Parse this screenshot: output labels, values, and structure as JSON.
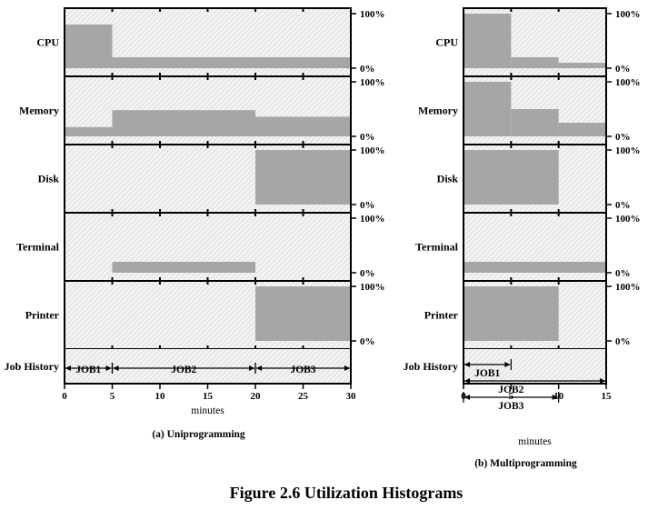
{
  "figure_title": "Figure 2.6  Utilization Histograms",
  "chart_data": [
    {
      "type": "bar",
      "title": "(a) Uniprogramming",
      "xlabel": "minutes",
      "xlim": [
        0,
        30
      ],
      "ticks": [
        0,
        5,
        10,
        15,
        20,
        25,
        30
      ],
      "ylim": [
        0,
        100
      ],
      "y_tick_labels": [
        "100%",
        "0%"
      ],
      "resources": [
        {
          "name": "CPU",
          "segments": [
            {
              "start": 0,
              "end": 5,
              "value": 80
            },
            {
              "start": 5,
              "end": 30,
              "value": 20
            }
          ]
        },
        {
          "name": "Memory",
          "segments": [
            {
              "start": 0,
              "end": 5,
              "value": 17
            },
            {
              "start": 5,
              "end": 20,
              "value": 48
            },
            {
              "start": 20,
              "end": 30,
              "value": 36
            }
          ]
        },
        {
          "name": "Disk",
          "segments": [
            {
              "start": 0,
              "end": 20,
              "value": 0
            },
            {
              "start": 20,
              "end": 30,
              "value": 100
            }
          ]
        },
        {
          "name": "Terminal",
          "segments": [
            {
              "start": 0,
              "end": 5,
              "value": 0
            },
            {
              "start": 5,
              "end": 20,
              "value": 20
            },
            {
              "start": 20,
              "end": 30,
              "value": 0
            }
          ]
        },
        {
          "name": "Printer",
          "segments": [
            {
              "start": 0,
              "end": 20,
              "value": 0
            },
            {
              "start": 20,
              "end": 30,
              "value": 100
            }
          ]
        }
      ],
      "job_history_label": "Job History",
      "jobs": [
        {
          "name": "JOB1",
          "start": 0,
          "end": 5
        },
        {
          "name": "JOB2",
          "start": 5,
          "end": 20
        },
        {
          "name": "JOB3",
          "start": 20,
          "end": 30
        }
      ]
    },
    {
      "type": "bar",
      "title": "(b) Multiprogramming",
      "xlabel": "minutes",
      "xlim": [
        0,
        15
      ],
      "ticks": [
        0,
        5,
        10,
        15
      ],
      "ylim": [
        0,
        100
      ],
      "y_tick_labels": [
        "100%",
        "0%"
      ],
      "resources": [
        {
          "name": "CPU",
          "segments": [
            {
              "start": 0,
              "end": 5,
              "value": 100
            },
            {
              "start": 5,
              "end": 10,
              "value": 20
            },
            {
              "start": 10,
              "end": 15,
              "value": 10
            }
          ]
        },
        {
          "name": "Memory",
          "segments": [
            {
              "start": 0,
              "end": 5,
              "value": 100
            },
            {
              "start": 5,
              "end": 10,
              "value": 50
            },
            {
              "start": 10,
              "end": 15,
              "value": 25
            }
          ]
        },
        {
          "name": "Disk",
          "segments": [
            {
              "start": 0,
              "end": 10,
              "value": 100
            },
            {
              "start": 10,
              "end": 15,
              "value": 0
            }
          ]
        },
        {
          "name": "Terminal",
          "segments": [
            {
              "start": 0,
              "end": 15,
              "value": 20
            }
          ]
        },
        {
          "name": "Printer",
          "segments": [
            {
              "start": 0,
              "end": 10,
              "value": 100
            },
            {
              "start": 10,
              "end": 15,
              "value": 0
            }
          ]
        }
      ],
      "job_history_label": "Job History",
      "jobs": [
        {
          "name": "JOB1",
          "start": 0,
          "end": 5
        },
        {
          "name": "JOB2",
          "start": 0,
          "end": 15
        },
        {
          "name": "JOB3",
          "start": 0,
          "end": 10
        }
      ]
    }
  ]
}
